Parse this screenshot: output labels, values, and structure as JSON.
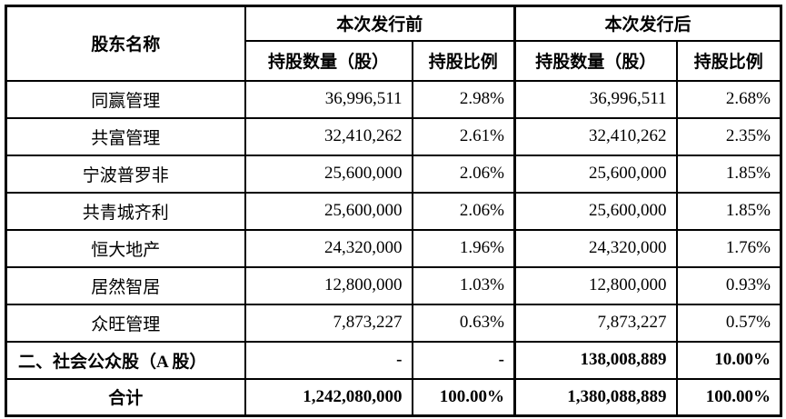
{
  "table": {
    "header": {
      "shareholder_label": "股东名称",
      "before_group_label": "本次发行前",
      "after_group_label": "本次发行后",
      "shares_label": "持股数量（股）",
      "ratio_label": "持股比例"
    },
    "rows": [
      {
        "name": "同赢管理",
        "before_shares": "36,996,511",
        "before_ratio": "2.98%",
        "after_shares": "36,996,511",
        "after_ratio": "2.68%"
      },
      {
        "name": "共富管理",
        "before_shares": "32,410,262",
        "before_ratio": "2.61%",
        "after_shares": "32,410,262",
        "after_ratio": "2.35%"
      },
      {
        "name": "宁波普罗非",
        "before_shares": "25,600,000",
        "before_ratio": "2.06%",
        "after_shares": "25,600,000",
        "after_ratio": "1.85%"
      },
      {
        "name": "共青城齐利",
        "before_shares": "25,600,000",
        "before_ratio": "2.06%",
        "after_shares": "25,600,000",
        "after_ratio": "1.85%"
      },
      {
        "name": "恒大地产",
        "before_shares": "24,320,000",
        "before_ratio": "1.96%",
        "after_shares": "24,320,000",
        "after_ratio": "1.76%"
      },
      {
        "name": "居然智居",
        "before_shares": "12,800,000",
        "before_ratio": "1.03%",
        "after_shares": "12,800,000",
        "after_ratio": "0.93%"
      },
      {
        "name": "众旺管理",
        "before_shares": "7,873,227",
        "before_ratio": "0.63%",
        "after_shares": "7,873,227",
        "after_ratio": "0.57%"
      }
    ],
    "public_row": {
      "name": "二、社会公众股（A 股）",
      "before_shares": "-",
      "before_ratio": "-",
      "after_shares": "138,008,889",
      "after_ratio": "10.00%"
    },
    "total_row": {
      "name": "合计",
      "before_shares": "1,242,080,000",
      "before_ratio": "100.00%",
      "after_shares": "1,380,088,889",
      "after_ratio": "100.00%"
    }
  }
}
